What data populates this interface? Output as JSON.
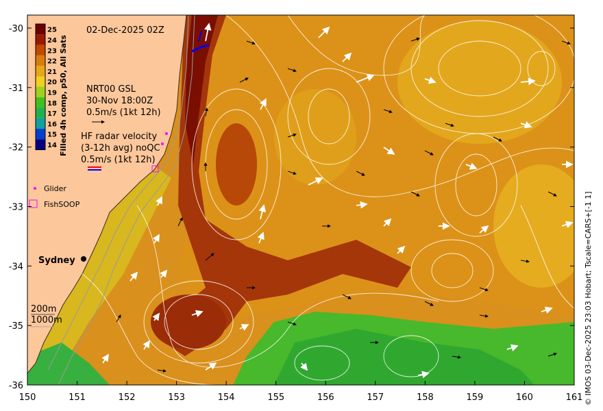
{
  "map": {
    "date_label": "02-Dec-2025 02Z",
    "colorbar": {
      "title": "Filled 4h comp, p50, All Sats",
      "ticks": [
        "25",
        "24",
        "23",
        "22",
        "21",
        "20",
        "19",
        "18",
        "17",
        "16",
        "15",
        "14"
      ],
      "colors": [
        "#6b0000",
        "#9a1a00",
        "#c24a00",
        "#d97e0c",
        "#e6a818",
        "#f0d020",
        "#a0d020",
        "#40c020",
        "#20b050",
        "#10a0a0",
        "#0040d0",
        "#000080"
      ]
    },
    "glider_key": {
      "line1": "NRT00 GSL",
      "line2": "30-Nov 18:00Z",
      "line3": "0.5m/s (1kt 12h)"
    },
    "hf_radar_key": {
      "line1": "HF radar velocity",
      "line2": "(3-12h avg) noQC",
      "line3": "0.5m/s (1kt 12h)"
    },
    "legend": {
      "glider_label": "Glider",
      "fishsoop_label": "FishSOOP"
    },
    "place_label": "Sydney",
    "depth_labels": {
      "d200": "200m",
      "d1000": "1000m"
    },
    "x_ticks": [
      "150",
      "151",
      "152",
      "153",
      "154",
      "155",
      "156",
      "157",
      "158",
      "159",
      "160",
      "161"
    ],
    "y_ticks": [
      "-30",
      "-31",
      "-32",
      "-33",
      "-34",
      "-35",
      "-36"
    ],
    "credit": "© IMOS 03-Dec-2025 23:03 Hobart; Tscale=CARS+[-1 1]"
  }
}
